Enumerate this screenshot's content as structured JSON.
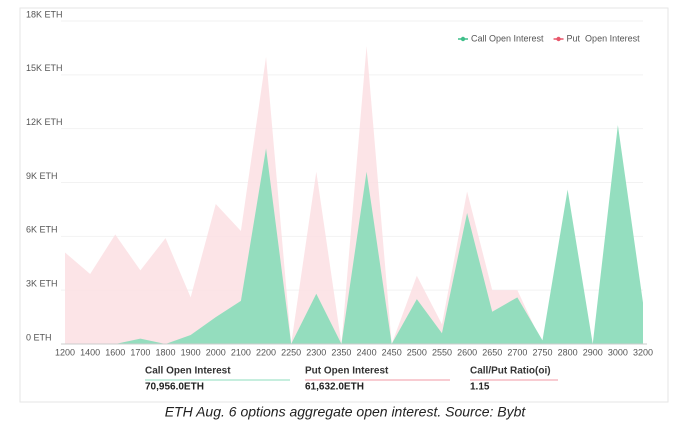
{
  "chart_data": {
    "type": "area",
    "categories": [
      "1200",
      "1400",
      "1600",
      "1700",
      "1800",
      "1900",
      "2000",
      "2100",
      "2200",
      "2250",
      "2300",
      "2350",
      "2400",
      "2450",
      "2500",
      "2550",
      "2600",
      "2650",
      "2700",
      "2750",
      "2800",
      "2900",
      "3000",
      "3200"
    ],
    "series": [
      {
        "name": "Put  Open Interest",
        "color": "#fbdfe3",
        "marker_color": "#e8566a",
        "values": [
          5100,
          3900,
          6100,
          4100,
          5900,
          2600,
          7800,
          6300,
          16000,
          0,
          9600,
          0,
          16600,
          0,
          3800,
          1100,
          8500,
          3000,
          3000,
          0,
          0,
          0,
          0,
          0
        ]
      },
      {
        "name": "Call Open Interest",
        "color": "#8edcbc",
        "marker_color": "#3fbf8a",
        "values": [
          0,
          0,
          0,
          300,
          0,
          500,
          1500,
          2400,
          10900,
          0,
          2800,
          0,
          9600,
          0,
          2500,
          600,
          7300,
          1800,
          2600,
          200,
          8600,
          0,
          12200,
          2300
        ]
      }
    ],
    "ylim": [
      0,
      18000
    ],
    "yticks": [
      {
        "value": 0,
        "label": "0 ETH"
      },
      {
        "value": 3000,
        "label": "3K ETH"
      },
      {
        "value": 6000,
        "label": "6K ETH"
      },
      {
        "value": 9000,
        "label": "9K ETH"
      },
      {
        "value": 12000,
        "label": "12K ETH"
      },
      {
        "value": 15000,
        "label": "15K ETH"
      },
      {
        "value": 18000,
        "label": "18K ETH"
      }
    ],
    "grid": true,
    "legend": "top-right",
    "summary": [
      {
        "label": "Call Open Interest",
        "value": "70,956.0ETH",
        "color": "#8edcbc"
      },
      {
        "label": "Put Open Interest",
        "value": "61,632.0ETH",
        "color": "#f29aa6"
      },
      {
        "label": "Call/Put Ratio(oi)",
        "value": "1.15",
        "color": "#f29aa6"
      }
    ],
    "caption": "ETH Aug. 6 options aggregate open interest. Source: Bybt"
  }
}
